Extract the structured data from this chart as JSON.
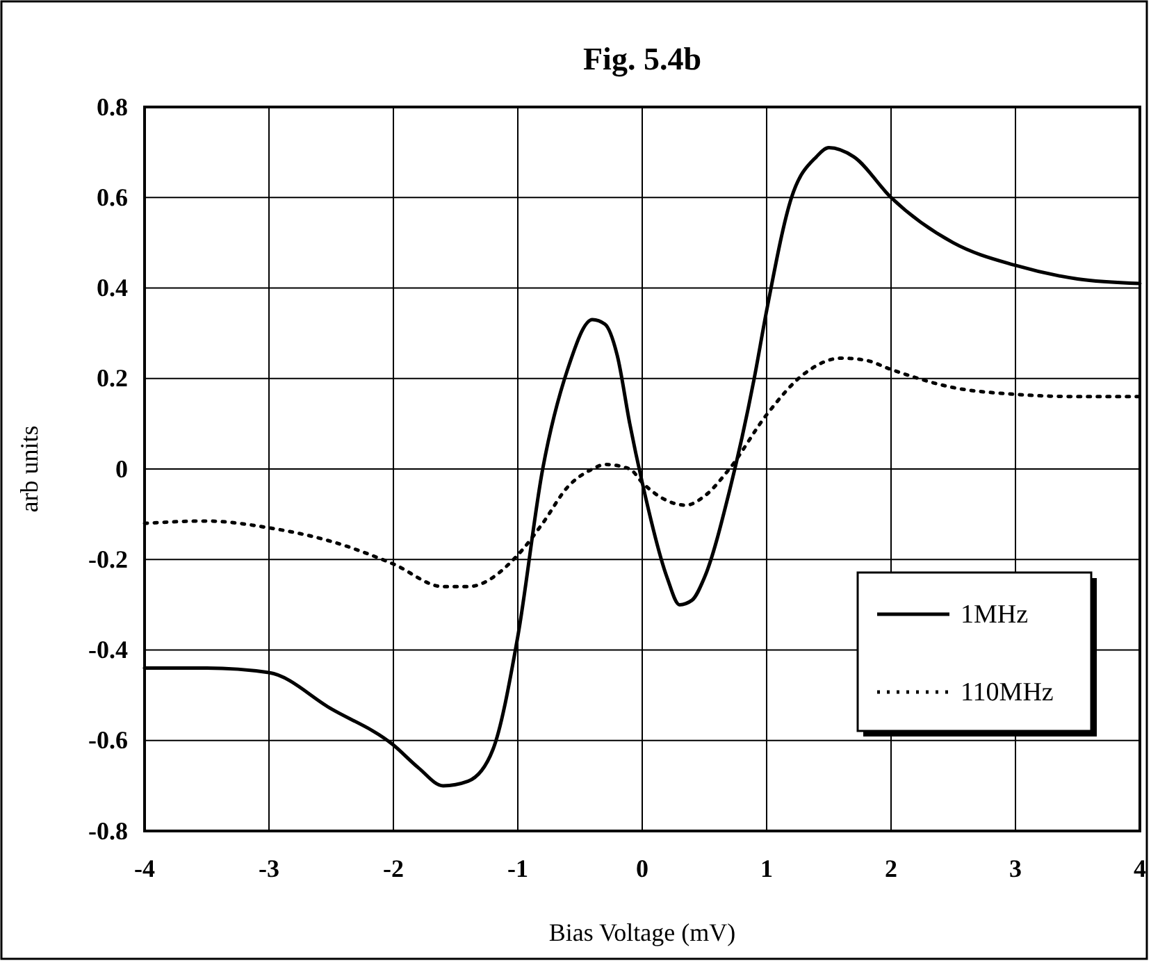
{
  "chart_data": {
    "type": "line",
    "title": "Fig. 5.4b",
    "xlabel": "Bias Voltage (mV)",
    "ylabel": "arb units",
    "xlim": [
      -4,
      4
    ],
    "xticks": [
      -4,
      -3,
      -2,
      -1,
      0,
      1,
      2,
      3,
      4
    ],
    "ylim": [
      -0.8,
      0.8
    ],
    "yticks": [
      -0.8,
      -0.6,
      -0.4,
      -0.2,
      0,
      0.2,
      0.4,
      0.6,
      0.8
    ],
    "grid": true,
    "legend": "right",
    "marker": "none",
    "series": [
      {
        "name": "1MHz",
        "color": "#000000",
        "line_style": "solid",
        "x": [
          -4,
          -3.5,
          -3,
          -2.5,
          -2,
          -1.8,
          -1.6,
          -1.4,
          -1.2,
          -1,
          -0.8,
          -0.6,
          -0.4,
          -0.3,
          -0.2,
          -0.1,
          0,
          0.2,
          0.3,
          0.4,
          0.5,
          0.7,
          0.9,
          1,
          1.2,
          1.4,
          1.5,
          1.7,
          2,
          2.5,
          3,
          3.5,
          4
        ],
        "values": [
          -0.44,
          -0.44,
          -0.45,
          -0.53,
          -0.61,
          -0.66,
          -0.7,
          -0.69,
          -0.62,
          -0.37,
          0,
          0.22,
          0.33,
          0.32,
          0.25,
          0.1,
          -0.03,
          -0.24,
          -0.3,
          -0.29,
          -0.24,
          -0.05,
          0.2,
          0.35,
          0.6,
          0.69,
          0.71,
          0.69,
          0.6,
          0.5,
          0.45,
          0.42,
          0.41
        ]
      },
      {
        "name": "110MHz",
        "color": "#000000",
        "line_style": "dotted",
        "x": [
          -4,
          -3.5,
          -3,
          -2.5,
          -2,
          -1.6,
          -1.4,
          -1,
          -0.8,
          -0.6,
          -0.4,
          -0.3,
          -0.1,
          0,
          0.2,
          0.35,
          0.5,
          0.7,
          1,
          1.3,
          1.6,
          1.8,
          2,
          2.5,
          3,
          3.5,
          4
        ],
        "values": [
          -0.12,
          -0.115,
          -0.13,
          -0.16,
          -0.21,
          -0.26,
          -0.26,
          -0.19,
          -0.12,
          -0.04,
          0,
          0.01,
          0,
          -0.03,
          -0.07,
          -0.08,
          -0.06,
          0,
          0.12,
          0.21,
          0.245,
          0.24,
          0.22,
          0.18,
          0.165,
          0.16,
          0.16
        ]
      }
    ]
  }
}
